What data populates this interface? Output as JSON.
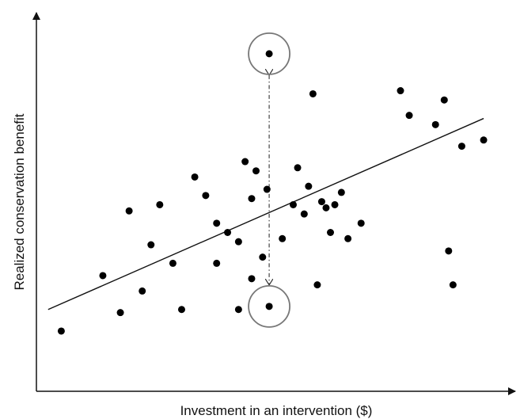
{
  "chart_data": {
    "type": "scatter",
    "title": "",
    "xlabel": "Investment in an intervention ($)",
    "ylabel": "Realized conservation benefit",
    "tick_labels_shown": false,
    "grid": false,
    "xlim": [
      0,
      100
    ],
    "ylim": [
      0,
      100
    ],
    "series": [
      {
        "points": [
          [
            5.5,
            18
          ],
          [
            15,
            36
          ],
          [
            19,
            24
          ],
          [
            21,
            57
          ],
          [
            24,
            31
          ],
          [
            26,
            46
          ],
          [
            28,
            59
          ],
          [
            31,
            40
          ],
          [
            33,
            25
          ],
          [
            36,
            68
          ],
          [
            38.5,
            62
          ],
          [
            41,
            53
          ],
          [
            41,
            40
          ],
          [
            43.5,
            50
          ],
          [
            46,
            47
          ],
          [
            46,
            25
          ],
          [
            47.5,
            73
          ],
          [
            49,
            61
          ],
          [
            49,
            35
          ],
          [
            50,
            70
          ],
          [
            51.5,
            42
          ],
          [
            52.5,
            64
          ],
          [
            56,
            48
          ],
          [
            58.5,
            59
          ],
          [
            59.5,
            71
          ],
          [
            61,
            56
          ],
          [
            62,
            65
          ],
          [
            63,
            95
          ],
          [
            64,
            33
          ],
          [
            65,
            60
          ],
          [
            66,
            58
          ],
          [
            67,
            50
          ],
          [
            68,
            59
          ],
          [
            69.5,
            63
          ],
          [
            71,
            48
          ],
          [
            74,
            53
          ],
          [
            83,
            96
          ],
          [
            85,
            88
          ],
          [
            91,
            85
          ],
          [
            93,
            93
          ],
          [
            94,
            44
          ],
          [
            95,
            33
          ],
          [
            97,
            78
          ],
          [
            102,
            80
          ]
        ]
      }
    ],
    "trend_line": {
      "from": [
        2.5,
        25
      ],
      "to": [
        102,
        87
      ]
    },
    "highlighted_points": [
      {
        "label": "",
        "point": [
          53,
          108
        ]
      },
      {
        "label": "",
        "point": [
          53,
          26
        ]
      }
    ]
  }
}
